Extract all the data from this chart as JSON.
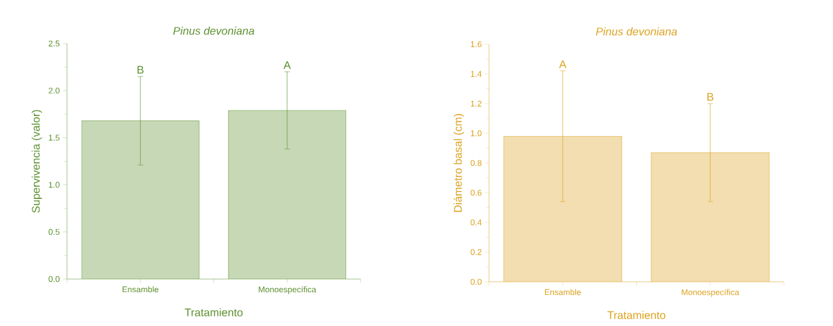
{
  "chart_data": [
    {
      "type": "bar",
      "title": "Pinus devoniana",
      "xlabel": "Tratamiento",
      "ylabel": "Supervivencia (valor)",
      "categories": [
        "Ensamble",
        "Monoespecífica"
      ],
      "values": [
        1.68,
        1.79
      ],
      "errors": [
        0.47,
        0.41
      ],
      "color": "#5b8f2e",
      "ylim": [
        0,
        2.5
      ],
      "yticks": [
        {
          "value": 0,
          "label": "0.0"
        },
        0.5,
        {
          "value": 1,
          "label": "1.0"
        },
        1.5,
        {
          "value": 2,
          "label": "2.0"
        },
        2.5
      ],
      "annotations": [
        {
          "text": "B",
          "x": "Ensamble",
          "y": 2.15
        },
        {
          "text": "A",
          "x": "Monoespecífica",
          "y": 2.2
        }
      ]
    },
    {
      "type": "bar",
      "title": "Pinus devoniana",
      "xlabel": "Tratamiento",
      "ylabel": "Diámetro basal (cm)",
      "categories": [
        "Ensamble",
        "Monoespecífica"
      ],
      "values": [
        0.98,
        0.87
      ],
      "errors": [
        0.44,
        0.33
      ],
      "color": "#dba11c",
      "ylim": [
        0,
        1.6
      ],
      "yticks": [
        {
          "value": 0,
          "label": "0.0"
        },
        0.2,
        0.4,
        0.6,
        0.8,
        {
          "value": 1,
          "label": "1.0"
        },
        1.2,
        1.4,
        1.6
      ],
      "annotations": [
        {
          "text": "A",
          "x": "Ensamble",
          "y": 1.42
        },
        {
          "text": "B",
          "x": "Monoespecífica",
          "y": 1.2
        }
      ]
    }
  ]
}
